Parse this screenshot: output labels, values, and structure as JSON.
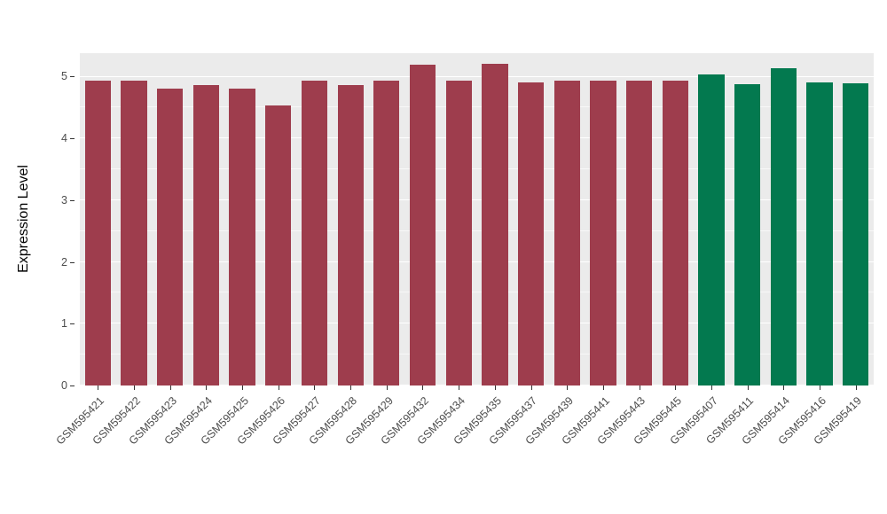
{
  "chart_data": {
    "type": "bar",
    "title": "",
    "xlabel": "",
    "ylabel": "Expression Level",
    "ylim": [
      0,
      5.38
    ],
    "yticks": [
      0,
      1,
      2,
      3,
      4,
      5
    ],
    "minor_ticks": [
      0.5,
      1.5,
      2.5,
      3.5,
      4.5
    ],
    "grid": "on",
    "legend": "none",
    "panel_background": "#EBEBEB",
    "grid_color": "#FFFFFF",
    "categories": [
      "GSM595421",
      "GSM595422",
      "GSM595423",
      "GSM595424",
      "GSM595425",
      "GSM595426",
      "GSM595427",
      "GSM595428",
      "GSM595429",
      "GSM595432",
      "GSM595434",
      "GSM595435",
      "GSM595437",
      "GSM595439",
      "GSM595441",
      "GSM595443",
      "GSM595445",
      "GSM595407",
      "GSM595411",
      "GSM595414",
      "GSM595416",
      "GSM595419"
    ],
    "values": [
      4.93,
      4.93,
      4.81,
      4.87,
      4.81,
      4.54,
      4.94,
      4.86,
      4.93,
      5.2,
      4.94,
      5.21,
      4.9,
      4.93,
      4.94,
      4.94,
      4.94,
      5.03,
      4.88,
      5.13,
      4.91,
      4.89
    ],
    "groups": [
      "group1",
      "group1",
      "group1",
      "group1",
      "group1",
      "group1",
      "group1",
      "group1",
      "group1",
      "group1",
      "group1",
      "group1",
      "group1",
      "group1",
      "group1",
      "group1",
      "group1",
      "group2",
      "group2",
      "group2",
      "group2",
      "group2"
    ],
    "group_colors": {
      "group1": "#9E3D4D",
      "group2": "#03794F"
    }
  }
}
